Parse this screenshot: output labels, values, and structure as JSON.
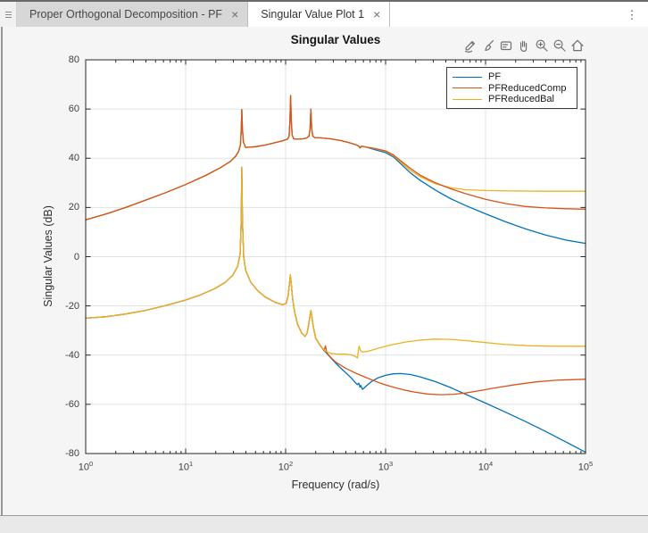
{
  "window": {
    "tabs": [
      {
        "label": "Proper Orthogonal Decomposition - PF",
        "active": false
      },
      {
        "label": "Singular Value Plot 1",
        "active": true
      }
    ],
    "close_glyph": "×",
    "more_options_glyph": "⋮"
  },
  "figure": {
    "title": "Singular Values",
    "xlabel": "Frequency (rad/s)",
    "ylabel": "Singular Values (dB)",
    "toolbar": [
      "export",
      "brush",
      "datatips",
      "pan",
      "zoom-in",
      "zoom-out",
      "restore-view"
    ],
    "legend": [
      {
        "label": "PF",
        "color": "#0072BD"
      },
      {
        "label": "PFReducedComp",
        "color": "#D95319"
      },
      {
        "label": "PFReducedBal",
        "color": "#EDB120"
      }
    ]
  },
  "chart_data": {
    "type": "line",
    "title": "Singular Values",
    "xlabel": "Frequency (rad/s)",
    "ylabel": "Singular Values (dB)",
    "xscale": "log",
    "xlim": [
      1,
      100000
    ],
    "ylim": [
      -80,
      80
    ],
    "yticks": [
      80,
      60,
      40,
      20,
      0,
      -20,
      -40,
      -60,
      -80
    ],
    "xtick_base": "10",
    "xtick_exponents": [
      0,
      1,
      2,
      3,
      4,
      5
    ],
    "grid": true,
    "legend_position": "northeast",
    "points_format": "[log10(frequency), dB]",
    "upper_common": [
      [
        0,
        15
      ],
      [
        0.2,
        17.3
      ],
      [
        0.4,
        20
      ],
      [
        0.6,
        23
      ],
      [
        0.8,
        26
      ],
      [
        1.0,
        29.3
      ],
      [
        1.2,
        33
      ],
      [
        1.35,
        36.2
      ],
      [
        1.45,
        38.8
      ],
      [
        1.5,
        40.8
      ],
      [
        1.53,
        42.8
      ],
      [
        1.548,
        45.5
      ],
      [
        1.556,
        52
      ],
      [
        1.562,
        59.8
      ],
      [
        1.568,
        52
      ],
      [
        1.578,
        46.5
      ],
      [
        1.6,
        44.4
      ],
      [
        1.7,
        44.7
      ],
      [
        1.8,
        45.4
      ],
      [
        1.9,
        46.4
      ],
      [
        1.97,
        47.1
      ],
      [
        2.02,
        47.8
      ],
      [
        2.035,
        49
      ],
      [
        2.043,
        55
      ],
      [
        2.05,
        65.5
      ],
      [
        2.057,
        55
      ],
      [
        2.065,
        49.5
      ],
      [
        2.08,
        47.9
      ],
      [
        2.12,
        47.8
      ],
      [
        2.17,
        47.9
      ],
      [
        2.21,
        48.2
      ],
      [
        2.235,
        49
      ],
      [
        2.245,
        52
      ],
      [
        2.253,
        60
      ],
      [
        2.261,
        52
      ],
      [
        2.272,
        49
      ],
      [
        2.29,
        48.4
      ],
      [
        2.35,
        48.3
      ],
      [
        2.45,
        47.9
      ],
      [
        2.55,
        47.2
      ],
      [
        2.65,
        46.2
      ],
      [
        2.71,
        45.4
      ],
      [
        2.73,
        45
      ],
      [
        2.745,
        44.2
      ],
      [
        2.76,
        44.9
      ],
      [
        2.8,
        44.6
      ]
    ],
    "lower_common": [
      [
        0,
        -25
      ],
      [
        0.2,
        -24.4
      ],
      [
        0.4,
        -23.3
      ],
      [
        0.6,
        -21.8
      ],
      [
        0.8,
        -19.9
      ],
      [
        1.0,
        -17.6
      ],
      [
        1.15,
        -15.5
      ],
      [
        1.3,
        -12.8
      ],
      [
        1.4,
        -10.3
      ],
      [
        1.47,
        -7.6
      ],
      [
        1.52,
        -4
      ],
      [
        1.545,
        1
      ],
      [
        1.556,
        15
      ],
      [
        1.562,
        36.3
      ],
      [
        1.568,
        15
      ],
      [
        1.58,
        0
      ],
      [
        1.6,
        -5.5
      ],
      [
        1.65,
        -10.3
      ],
      [
        1.72,
        -13.8
      ],
      [
        1.8,
        -16.5
      ],
      [
        1.9,
        -18.6
      ],
      [
        1.97,
        -19.5
      ],
      [
        2.005,
        -19
      ],
      [
        2.025,
        -16
      ],
      [
        2.038,
        -11
      ],
      [
        2.047,
        -7.4
      ],
      [
        2.056,
        -11
      ],
      [
        2.07,
        -17
      ],
      [
        2.09,
        -22.5
      ],
      [
        2.12,
        -27.5
      ],
      [
        2.16,
        -31
      ],
      [
        2.195,
        -32.4
      ],
      [
        2.215,
        -31
      ],
      [
        2.233,
        -27
      ],
      [
        2.245,
        -23.8
      ],
      [
        2.253,
        -21.9
      ],
      [
        2.262,
        -24
      ],
      [
        2.275,
        -28
      ],
      [
        2.3,
        -33
      ]
    ],
    "series": [
      {
        "name": "PF",
        "color": "#0072BD",
        "branches": [
          {
            "base": "upper_common",
            "z": 1,
            "tail": [
              [
                2.9,
                43.4
              ],
              [
                3.0,
                42.3
              ],
              [
                3.08,
                40.5
              ],
              [
                3.15,
                37.8
              ],
              [
                3.25,
                34
              ],
              [
                3.35,
                30.9
              ],
              [
                3.5,
                27
              ],
              [
                3.65,
                23.6
              ],
              [
                3.8,
                20.8
              ],
              [
                4.0,
                17.4
              ],
              [
                4.2,
                14.2
              ],
              [
                4.4,
                11.3
              ],
              [
                4.6,
                8.8
              ],
              [
                4.8,
                6.8
              ],
              [
                5.0,
                5.4
              ]
            ]
          },
          {
            "base": "lower_common",
            "z": 2,
            "tail": [
              [
                2.35,
                -36.3
              ],
              [
                2.4,
                -38.8
              ],
              [
                2.45,
                -41
              ],
              [
                2.5,
                -43.2
              ],
              [
                2.55,
                -45.2
              ],
              [
                2.6,
                -47.1
              ],
              [
                2.65,
                -49
              ],
              [
                2.7,
                -51.3
              ],
              [
                2.72,
                -52
              ],
              [
                2.732,
                -51.4
              ],
              [
                2.744,
                -53
              ],
              [
                2.752,
                -52.3
              ],
              [
                2.768,
                -53.9
              ],
              [
                2.78,
                -53.5
              ],
              [
                2.8,
                -52.8
              ],
              [
                2.85,
                -51
              ],
              [
                2.92,
                -49.3
              ],
              [
                3.0,
                -48.2
              ],
              [
                3.08,
                -47.6
              ],
              [
                3.15,
                -47.5
              ],
              [
                3.25,
                -47.9
              ],
              [
                3.35,
                -48.9
              ],
              [
                3.5,
                -50.8
              ],
              [
                3.65,
                -53.2
              ],
              [
                3.8,
                -55.9
              ],
              [
                4.0,
                -59.5
              ],
              [
                4.2,
                -63.2
              ],
              [
                4.4,
                -67
              ],
              [
                4.6,
                -71
              ],
              [
                4.8,
                -75.2
              ],
              [
                5.0,
                -79.5
              ]
            ]
          }
        ]
      },
      {
        "name": "PFReducedComp",
        "color": "#D95319",
        "branches": [
          {
            "base": "upper_common",
            "z": 5,
            "tail": [
              [
                2.9,
                43.9
              ],
              [
                3.0,
                43
              ],
              [
                3.08,
                41.3
              ],
              [
                3.15,
                39
              ],
              [
                3.25,
                35.8
              ],
              [
                3.35,
                33
              ],
              [
                3.5,
                30
              ],
              [
                3.65,
                27.6
              ],
              [
                3.8,
                25.6
              ],
              [
                4.0,
                23.3
              ],
              [
                4.2,
                21.6
              ],
              [
                4.4,
                20.4
              ],
              [
                4.6,
                19.8
              ],
              [
                4.8,
                19.5
              ],
              [
                5.0,
                19.3
              ]
            ]
          },
          {
            "base": "lower_common",
            "z": 4,
            "tail": [
              [
                2.35,
                -36.3
              ],
              [
                2.385,
                -38.2
              ],
              [
                2.398,
                -36.2
              ],
              [
                2.412,
                -39
              ],
              [
                2.45,
                -40.9
              ],
              [
                2.5,
                -42.8
              ],
              [
                2.6,
                -45.3
              ],
              [
                2.7,
                -47.3
              ],
              [
                2.8,
                -49
              ],
              [
                2.9,
                -50.7
              ],
              [
                3.0,
                -52.1
              ],
              [
                3.1,
                -53.3
              ],
              [
                3.2,
                -54.3
              ],
              [
                3.3,
                -55.1
              ],
              [
                3.42,
                -55.8
              ],
              [
                3.55,
                -56.1
              ],
              [
                3.68,
                -55.9
              ],
              [
                3.8,
                -55.4
              ],
              [
                3.95,
                -54.4
              ],
              [
                4.1,
                -53.3
              ],
              [
                4.3,
                -52
              ],
              [
                4.5,
                -50.9
              ],
              [
                4.7,
                -50.2
              ],
              [
                4.85,
                -50
              ],
              [
                5.0,
                -49.8
              ]
            ]
          }
        ]
      },
      {
        "name": "PFReducedBal",
        "color": "#EDB120",
        "branches": [
          {
            "base": "upper_common",
            "z": 3,
            "tail": [
              [
                2.9,
                43.8
              ],
              [
                3.0,
                42.8
              ],
              [
                3.08,
                41
              ],
              [
                3.15,
                38.5
              ],
              [
                3.25,
                35
              ],
              [
                3.35,
                32.4
              ],
              [
                3.5,
                29.6
              ],
              [
                3.65,
                28
              ],
              [
                3.8,
                27.2
              ],
              [
                4.0,
                26.9
              ],
              [
                4.25,
                26.7
              ],
              [
                4.6,
                26.6
              ],
              [
                5.0,
                26.6
              ]
            ]
          },
          {
            "base": "lower_common",
            "z": 6,
            "tail": [
              [
                2.35,
                -36.5
              ],
              [
                2.4,
                -38.4
              ],
              [
                2.45,
                -39.3
              ],
              [
                2.52,
                -39.6
              ],
              [
                2.6,
                -39.6
              ],
              [
                2.66,
                -39.9
              ],
              [
                2.7,
                -40.6
              ],
              [
                2.72,
                -41.1
              ],
              [
                2.728,
                -38
              ],
              [
                2.736,
                -36.4
              ],
              [
                2.75,
                -38.2
              ],
              [
                2.77,
                -38.8
              ],
              [
                2.83,
                -38.4
              ],
              [
                2.92,
                -37.3
              ],
              [
                3.05,
                -35.9
              ],
              [
                3.2,
                -34.7
              ],
              [
                3.35,
                -33.9
              ],
              [
                3.5,
                -33.5
              ],
              [
                3.65,
                -33.6
              ],
              [
                3.8,
                -34.1
              ],
              [
                4.0,
                -34.9
              ],
              [
                4.2,
                -35.7
              ],
              [
                4.45,
                -36.2
              ],
              [
                4.7,
                -36.4
              ],
              [
                5.0,
                -36.4
              ]
            ]
          }
        ]
      }
    ]
  }
}
